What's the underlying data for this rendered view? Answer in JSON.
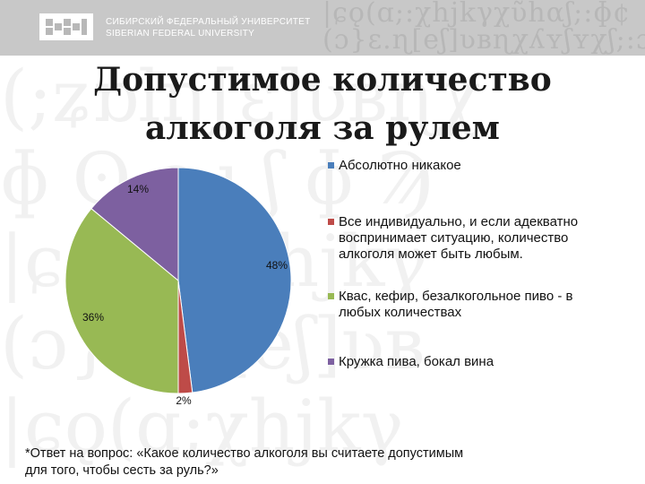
{
  "header": {
    "university_ru": "СИБИРСКИЙ ФЕДЕРАЛЬНЫЙ УНИВЕРСИТЕТ",
    "university_en": "SIBERIAN FEDERAL UNIVERSITY"
  },
  "slide": {
    "title_line1": "Допустимое количество",
    "title_line2": "алкоголя за рулем",
    "footnote_line1": "*Ответ на вопрос: «Какое количество алкоголя вы считаете допустимым",
    "footnote_line2": "для того, чтобы сесть за руль?»"
  },
  "chart_data": {
    "type": "pie",
    "title": "",
    "legend_position": "right",
    "slices": [
      {
        "label_lines": [
          "Абсолютно никакое"
        ],
        "value": 48,
        "display": "48%",
        "color": "#4a7ebb"
      },
      {
        "label_lines": [
          "Все индивидуально, и если адекватно",
          "воспринимает ситуацию, количество",
          "алкоголя может быть любым."
        ],
        "value": 2,
        "display": "2%",
        "color": "#be4b48"
      },
      {
        "label_lines": [
          "Квас, кефир, безалкогольное пиво - в",
          "любых количествах"
        ],
        "value": 36,
        "display": "36%",
        "color": "#98b954"
      },
      {
        "label_lines": [
          "Кружка пива, бокал вина"
        ],
        "value": 14,
        "display": "14%",
        "color": "#7d60a0"
      }
    ]
  }
}
